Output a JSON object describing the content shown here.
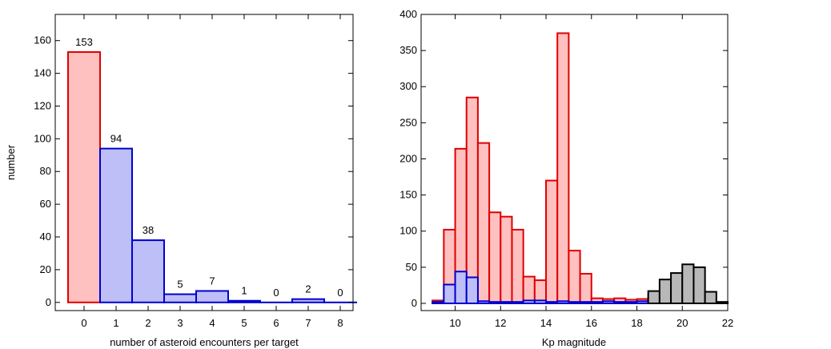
{
  "chart_data": [
    {
      "type": "bar",
      "title": "",
      "xlabel": "number of asteroid encounters per target",
      "ylabel": "number",
      "xlim": [
        -0.9,
        8.4
      ],
      "ylim": [
        -5,
        176
      ],
      "xticks": [
        0,
        1,
        2,
        3,
        4,
        5,
        6,
        7,
        8
      ],
      "yticks": [
        0,
        20,
        40,
        60,
        80,
        100,
        120,
        140,
        160
      ],
      "grid": false,
      "categories": [
        0,
        1,
        2,
        3,
        4,
        5,
        6,
        7,
        8
      ],
      "values": [
        153,
        94,
        38,
        5,
        7,
        1,
        0,
        2,
        0
      ],
      "data_labels": [
        "153",
        "94",
        "38",
        "5",
        "7",
        "1",
        "0",
        "2",
        "0"
      ],
      "bar_colors": {
        "red_fill": "#ffc0c0",
        "red_edge": "#e00000",
        "blue_fill": "#bfbff7",
        "blue_edge": "#0000d0"
      }
    },
    {
      "type": "bar",
      "title": "",
      "xlabel": "Kp magnitude",
      "ylabel": "",
      "xlim": [
        8.5,
        22
      ],
      "ylim": [
        -10,
        400
      ],
      "xticks": [
        10,
        12,
        14,
        16,
        18,
        20,
        22
      ],
      "yticks": [
        0,
        50,
        100,
        150,
        200,
        250,
        300,
        350,
        400
      ],
      "grid": false,
      "bin_width": 0.5,
      "series": [
        {
          "color": "#e00000",
          "fill": "#ffc0c0",
          "bins": [
            [
              9.0,
              4
            ],
            [
              9.5,
              102
            ],
            [
              10.0,
              214
            ],
            [
              10.5,
              285
            ],
            [
              11.0,
              222
            ],
            [
              11.5,
              126
            ],
            [
              12.0,
              120
            ],
            [
              12.5,
              102
            ],
            [
              13.0,
              37
            ],
            [
              13.5,
              32
            ],
            [
              14.0,
              170
            ],
            [
              14.5,
              374
            ],
            [
              15.0,
              73
            ],
            [
              15.5,
              41
            ],
            [
              16.0,
              7
            ],
            [
              16.5,
              6
            ],
            [
              17.0,
              7
            ],
            [
              17.5,
              5
            ],
            [
              18.0,
              6
            ],
            [
              18.5,
              12
            ],
            [
              19.0,
              9
            ]
          ]
        },
        {
          "color": "#0000d0",
          "fill": "#bfbff7",
          "bins": [
            [
              9.0,
              2
            ],
            [
              9.5,
              26
            ],
            [
              10.0,
              44
            ],
            [
              10.5,
              36
            ],
            [
              11.0,
              3
            ],
            [
              11.5,
              2
            ],
            [
              12.0,
              2
            ],
            [
              12.5,
              2
            ],
            [
              13.0,
              4
            ],
            [
              13.5,
              4
            ],
            [
              14.0,
              2
            ],
            [
              14.5,
              3
            ],
            [
              15.0,
              2
            ],
            [
              15.5,
              2
            ],
            [
              16.0,
              2
            ],
            [
              16.5,
              3
            ],
            [
              17.0,
              2
            ],
            [
              17.5,
              2
            ],
            [
              18.0,
              3
            ],
            [
              18.5,
              7
            ],
            [
              19.0,
              4
            ]
          ]
        },
        {
          "color": "#000000",
          "fill": "#b8b8b8",
          "bins": [
            [
              18.5,
              17
            ],
            [
              19.0,
              33
            ],
            [
              19.5,
              42
            ],
            [
              20.0,
              54
            ],
            [
              20.5,
              50
            ],
            [
              21.0,
              16
            ],
            [
              21.5,
              2
            ]
          ]
        }
      ]
    }
  ]
}
